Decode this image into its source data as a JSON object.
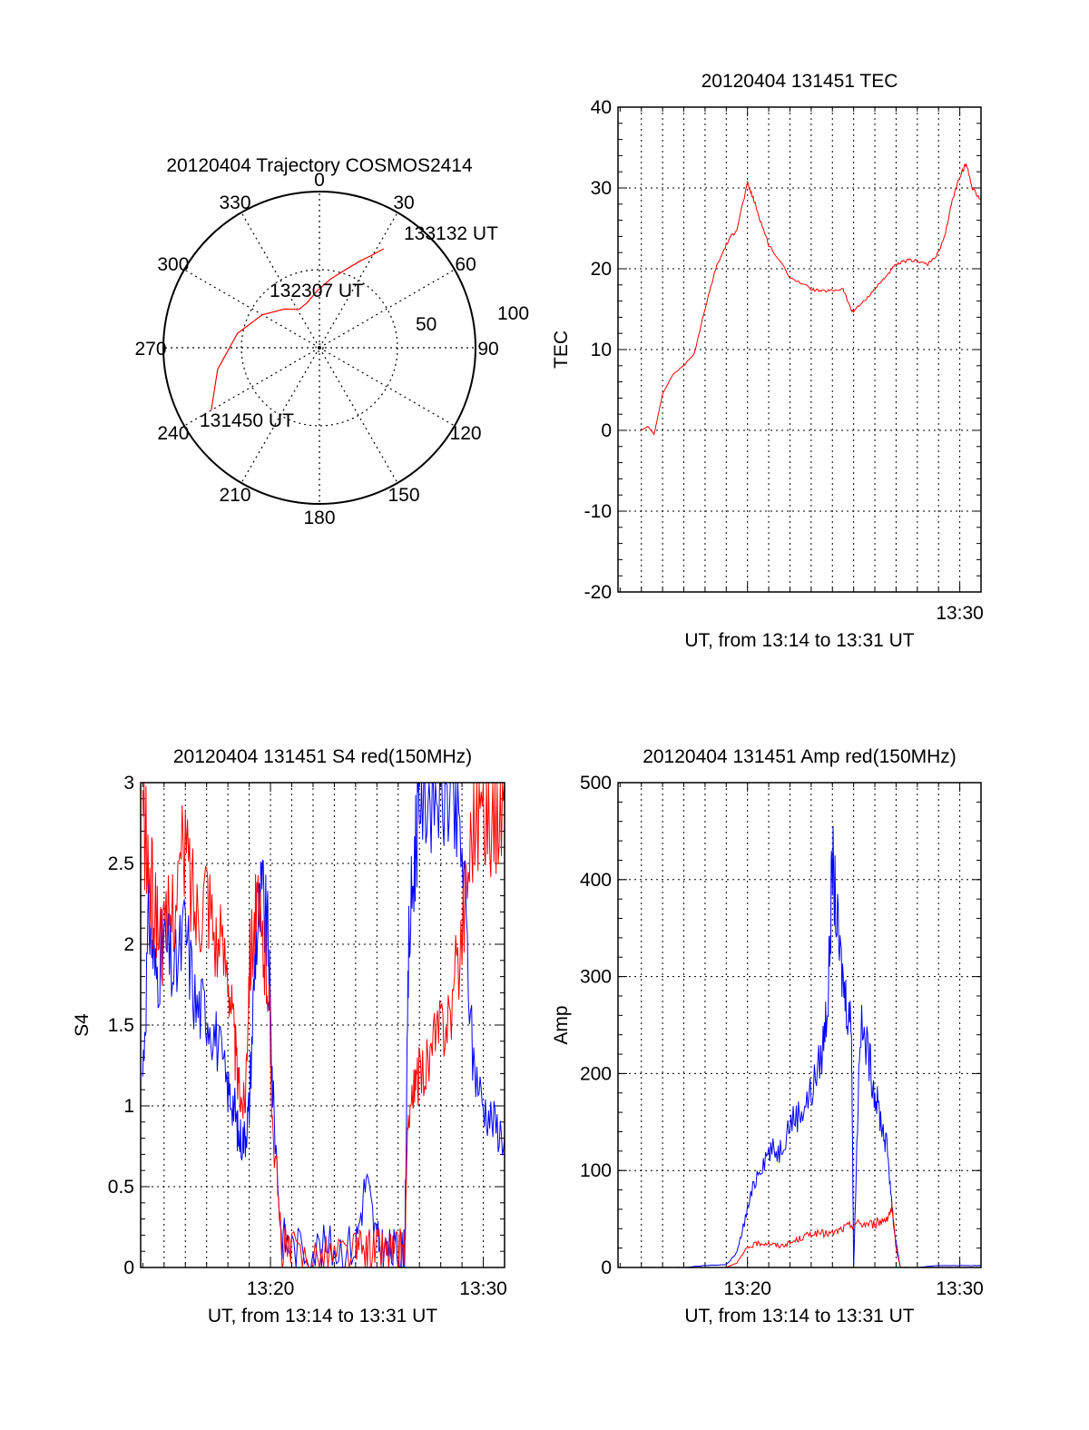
{
  "chart_data": [
    {
      "type": "polar",
      "title": "20120404 Trajectory COSMOS2414",
      "azimuth_labels": [
        "0",
        "30",
        "60",
        "90",
        "120",
        "150",
        "180",
        "210",
        "240",
        "270",
        "300",
        "330"
      ],
      "radius_labels": [
        "50",
        "100"
      ],
      "track": [
        {
          "az": 240,
          "el": 18
        },
        {
          "az": 258,
          "el": 30
        },
        {
          "az": 280,
          "el": 42
        },
        {
          "az": 300,
          "el": 52
        },
        {
          "az": 318,
          "el": 60
        },
        {
          "az": 332,
          "el": 65
        },
        {
          "az": 345,
          "el": 63
        },
        {
          "az": 358,
          "el": 57
        },
        {
          "az": 9,
          "el": 50
        },
        {
          "az": 18,
          "el": 43
        },
        {
          "az": 25,
          "el": 35
        },
        {
          "az": 30,
          "el": 28
        },
        {
          "az": 33,
          "el": 22
        }
      ],
      "annotations": [
        "131450 UT",
        "132307 UT",
        "133132 UT"
      ],
      "track_color": "#ff0000"
    },
    {
      "type": "line",
      "title": "20120404 131451 TEC",
      "ylabel": "TEC",
      "xlabel": "UT, from 13:14 to 13:31 UT",
      "x_tick_labels": [
        "13:30"
      ],
      "y_tick_labels": [
        "-20",
        "-10",
        "0",
        "10",
        "20",
        "30",
        "40"
      ],
      "ylim": [
        -20,
        40
      ],
      "xlim_minutes": [
        13.9,
        31.0
      ],
      "series": [
        {
          "color": "#ff0000",
          "x_minutes": [
            15.0,
            15.3,
            15.6,
            16.0,
            16.5,
            17.0,
            17.5,
            17.9,
            18.1,
            18.5,
            19.0,
            19.5,
            20.0,
            20.3,
            20.6,
            21.0,
            22.0,
            23.0,
            23.5,
            24.0,
            24.5,
            24.9,
            25.0,
            25.5,
            26.0,
            26.5,
            27.0,
            27.5,
            28.0,
            28.5,
            29.0,
            29.3,
            29.6,
            30.0,
            30.3,
            30.6,
            31.0
          ],
          "values": [
            0.0,
            0.5,
            -0.5,
            4.5,
            7.0,
            8.0,
            9.5,
            14.0,
            16.0,
            20.0,
            23.0,
            25.0,
            30.5,
            28.5,
            26.0,
            23.0,
            19.0,
            17.5,
            17.2,
            17.3,
            17.5,
            14.8,
            14.8,
            16.0,
            17.5,
            19.0,
            20.5,
            21.0,
            21.0,
            20.5,
            22.0,
            24.0,
            28.0,
            31.5,
            33.0,
            30.0,
            28.5
          ]
        }
      ]
    },
    {
      "type": "line",
      "title": "20120404 131451 S4 red(150MHz)",
      "ylabel": "S4",
      "xlabel": "UT, from 13:14 to 13:31 UT",
      "x_tick_labels": [
        "13:20",
        "13:30"
      ],
      "y_tick_labels": [
        "0",
        "0.5",
        "1",
        "1.5",
        "2",
        "2.5",
        "3"
      ],
      "ylim": [
        0,
        3
      ],
      "xlim_minutes": [
        13.9,
        31.0
      ],
      "series": [
        {
          "color": "#0000ff",
          "x_minutes": [
            14.0,
            14.3,
            14.6,
            15.0,
            15.5,
            16.0,
            16.5,
            17.0,
            17.5,
            18.0,
            18.3,
            18.5,
            18.8,
            19.0,
            19.3,
            19.6,
            19.9,
            20.1,
            20.5,
            21.0,
            22.0,
            23.0,
            24.0,
            24.5,
            25.0,
            25.5,
            26.0,
            26.3,
            26.5,
            26.8,
            27.0,
            27.5,
            28.0,
            28.5,
            29.0,
            29.5,
            30.0,
            30.5,
            31.0
          ],
          "values": [
            1.2,
            2.2,
            1.8,
            2.0,
            1.8,
            2.1,
            1.6,
            1.6,
            1.4,
            1.1,
            1.0,
            0.8,
            0.8,
            1.0,
            2.0,
            2.3,
            2.0,
            1.1,
            0.2,
            0.12,
            0.12,
            0.12,
            0.14,
            0.55,
            0.15,
            0.1,
            0.1,
            0.1,
            2.0,
            2.6,
            3.0,
            3.0,
            3.0,
            2.9,
            2.6,
            1.3,
            1.0,
            0.9,
            0.8
          ]
        },
        {
          "color": "#ff0000",
          "x_minutes": [
            14.0,
            14.3,
            14.6,
            15.0,
            15.5,
            16.0,
            16.5,
            17.0,
            17.5,
            18.0,
            18.3,
            18.5,
            18.8,
            19.0,
            19.3,
            19.6,
            19.9,
            20.1,
            20.5,
            21.0,
            22.0,
            23.0,
            24.0,
            24.5,
            25.0,
            25.5,
            26.0,
            26.3,
            26.5,
            26.8,
            27.0,
            27.5,
            28.0,
            28.5,
            29.0,
            29.5,
            30.0,
            30.5,
            31.0
          ],
          "values": [
            2.8,
            2.4,
            2.2,
            2.0,
            2.3,
            2.6,
            2.2,
            2.4,
            2.0,
            1.9,
            1.4,
            1.1,
            1.0,
            1.9,
            2.2,
            2.0,
            1.8,
            0.9,
            0.15,
            0.08,
            0.08,
            0.08,
            0.1,
            0.1,
            0.12,
            0.1,
            0.1,
            0.1,
            1.0,
            1.1,
            1.2,
            1.3,
            1.5,
            1.6,
            2.1,
            2.8,
            2.9,
            2.8,
            3.0
          ]
        }
      ]
    },
    {
      "type": "line",
      "title": "20120404 131451 Amp red(150MHz)",
      "ylabel": "Amp",
      "xlabel": "UT, from 13:14 to 13:31 UT",
      "x_tick_labels": [
        "13:20",
        "13:30"
      ],
      "y_tick_labels": [
        "0",
        "100",
        "200",
        "300",
        "400",
        "500"
      ],
      "ylim": [
        0,
        500
      ],
      "xlim_minutes": [
        13.9,
        31.0
      ],
      "series": [
        {
          "color": "#0000ff",
          "x_minutes": [
            15.0,
            16.0,
            17.0,
            18.0,
            19.0,
            19.5,
            20.0,
            20.5,
            21.0,
            21.5,
            22.0,
            22.5,
            23.0,
            23.5,
            23.8,
            24.0,
            24.3,
            24.6,
            24.9,
            25.0,
            25.3,
            25.7,
            26.0,
            26.3,
            26.6,
            26.9,
            27.2,
            28.0,
            29.0,
            30.0,
            31.0
          ],
          "values": [
            0,
            0,
            0,
            2,
            3,
            15,
            60,
            100,
            120,
            120,
            150,
            160,
            180,
            220,
            280,
            420,
            330,
            280,
            250,
            0,
            250,
            220,
            180,
            150,
            120,
            40,
            0,
            0,
            2,
            2,
            2
          ]
        },
        {
          "color": "#ff0000",
          "x_minutes": [
            15.0,
            16.0,
            17.0,
            18.0,
            19.0,
            19.5,
            20.0,
            20.5,
            21.0,
            21.5,
            22.0,
            22.5,
            23.0,
            23.5,
            24.0,
            24.5,
            25.0,
            25.5,
            26.0,
            26.5,
            26.8,
            27.0,
            27.2,
            28.0,
            29.0,
            30.0,
            31.0
          ],
          "values": [
            0,
            0,
            0,
            0,
            0,
            5,
            20,
            25,
            25,
            22,
            25,
            30,
            35,
            35,
            35,
            40,
            45,
            45,
            45,
            50,
            60,
            20,
            0,
            0,
            0,
            0,
            0
          ]
        }
      ]
    }
  ]
}
